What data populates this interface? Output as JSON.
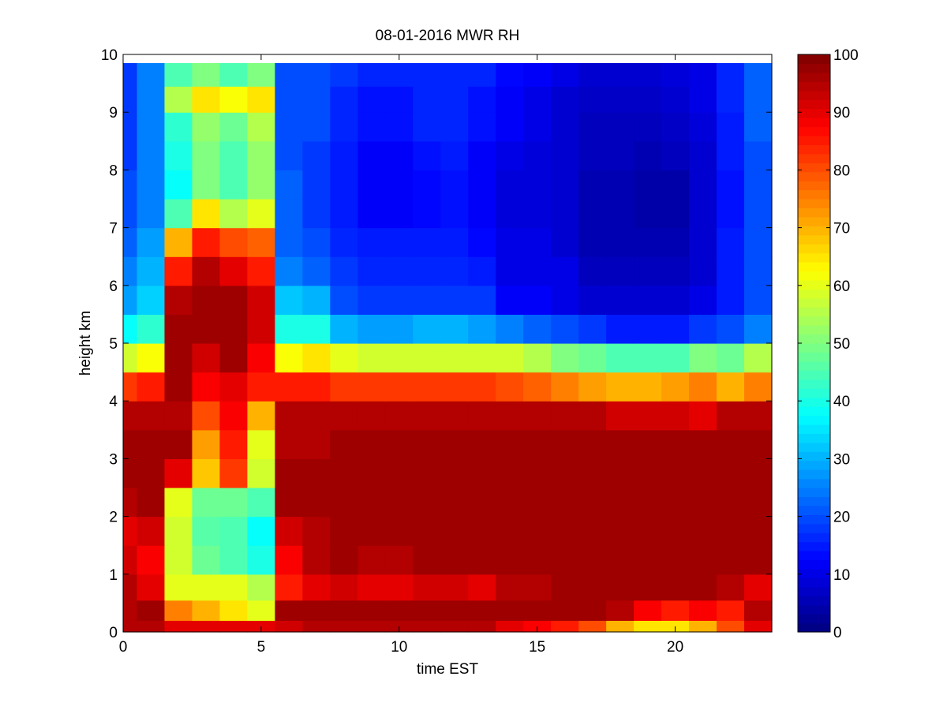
{
  "chart_data": {
    "type": "heatmap",
    "title": "08-01-2016 MWR RH",
    "xlabel": "time EST",
    "ylabel": "height km",
    "xlim": [
      0,
      23.5
    ],
    "ylim": [
      0,
      10
    ],
    "x_ticks": [
      0,
      5,
      10,
      15,
      20
    ],
    "y_ticks": [
      0,
      1,
      2,
      3,
      4,
      5,
      6,
      7,
      8,
      9,
      10
    ],
    "colorbar": {
      "colormap": "jet",
      "clim": [
        0,
        100
      ],
      "ticks": [
        0,
        10,
        20,
        30,
        40,
        50,
        60,
        70,
        80,
        90,
        100
      ]
    },
    "x": [
      0,
      1,
      2,
      3,
      4,
      5,
      6,
      7,
      8,
      9,
      10,
      11,
      12,
      13,
      14,
      15,
      16,
      17,
      18,
      19,
      20,
      21,
      22,
      23
    ],
    "y": [
      0.05,
      0.35,
      0.75,
      1.25,
      1.75,
      2.25,
      2.75,
      3.25,
      3.75,
      4.25,
      4.75,
      5.25,
      5.75,
      6.25,
      6.75,
      7.25,
      7.75,
      8.25,
      8.75,
      9.25,
      9.65
    ],
    "z": [
      [
        95,
        95,
        90,
        90,
        90,
        90,
        92,
        95,
        95,
        95,
        95,
        95,
        95,
        95,
        90,
        88,
        85,
        80,
        70,
        65,
        65,
        70,
        80,
        90
      ],
      [
        95,
        97,
        75,
        70,
        65,
        60,
        97,
        97,
        97,
        97,
        97,
        97,
        97,
        97,
        97,
        97,
        97,
        97,
        95,
        88,
        85,
        88,
        85,
        95
      ],
      [
        95,
        90,
        60,
        60,
        60,
        55,
        85,
        90,
        92,
        90,
        90,
        92,
        92,
        90,
        95,
        95,
        97,
        97,
        97,
        97,
        97,
        97,
        95,
        90
      ],
      [
        92,
        88,
        58,
        48,
        45,
        40,
        88,
        95,
        97,
        95,
        95,
        97,
        97,
        97,
        97,
        97,
        97,
        97,
        97,
        97,
        97,
        97,
        97,
        97
      ],
      [
        90,
        92,
        58,
        46,
        45,
        38,
        92,
        95,
        97,
        97,
        97,
        97,
        97,
        97,
        97,
        97,
        97,
        97,
        97,
        97,
        97,
        97,
        97,
        97
      ],
      [
        95,
        97,
        60,
        48,
        48,
        45,
        97,
        97,
        97,
        97,
        97,
        97,
        97,
        97,
        97,
        97,
        97,
        97,
        97,
        97,
        97,
        97,
        97,
        97
      ],
      [
        97,
        97,
        90,
        68,
        82,
        58,
        97,
        97,
        97,
        97,
        97,
        97,
        97,
        97,
        97,
        97,
        97,
        97,
        97,
        97,
        97,
        97,
        97,
        97
      ],
      [
        97,
        97,
        97,
        72,
        85,
        60,
        95,
        95,
        97,
        97,
        97,
        97,
        97,
        97,
        97,
        97,
        97,
        97,
        97,
        97,
        97,
        97,
        97,
        97
      ],
      [
        95,
        95,
        95,
        80,
        88,
        70,
        95,
        95,
        95,
        95,
        95,
        95,
        95,
        95,
        95,
        95,
        95,
        95,
        92,
        92,
        92,
        90,
        95,
        95
      ],
      [
        82,
        85,
        97,
        88,
        90,
        85,
        85,
        85,
        82,
        82,
        82,
        82,
        82,
        82,
        80,
        78,
        75,
        72,
        70,
        70,
        72,
        75,
        70,
        75
      ],
      [
        58,
        62,
        97,
        92,
        97,
        88,
        62,
        65,
        60,
        58,
        58,
        58,
        58,
        58,
        58,
        55,
        50,
        48,
        45,
        45,
        45,
        50,
        48,
        55
      ],
      [
        38,
        42,
        97,
        97,
        97,
        92,
        40,
        40,
        30,
        28,
        28,
        30,
        30,
        28,
        25,
        22,
        20,
        18,
        15,
        15,
        15,
        18,
        20,
        25
      ],
      [
        28,
        33,
        95,
        97,
        97,
        92,
        32,
        30,
        20,
        18,
        18,
        18,
        18,
        18,
        12,
        12,
        10,
        8,
        8,
        8,
        8,
        10,
        15,
        20
      ],
      [
        25,
        30,
        85,
        95,
        90,
        85,
        25,
        22,
        18,
        16,
        16,
        16,
        16,
        15,
        10,
        10,
        10,
        6,
        6,
        6,
        6,
        8,
        15,
        20
      ],
      [
        22,
        28,
        70,
        85,
        80,
        78,
        22,
        20,
        16,
        15,
        15,
        15,
        15,
        13,
        10,
        10,
        8,
        5,
        5,
        5,
        5,
        8,
        15,
        20
      ],
      [
        20,
        25,
        45,
        65,
        55,
        60,
        22,
        18,
        15,
        12,
        12,
        13,
        14,
        12,
        9,
        9,
        8,
        5,
        5,
        4,
        4,
        8,
        14,
        20
      ],
      [
        20,
        25,
        38,
        50,
        45,
        52,
        22,
        18,
        15,
        12,
        12,
        13,
        14,
        12,
        9,
        9,
        8,
        5,
        5,
        4,
        4,
        8,
        14,
        20
      ],
      [
        18,
        25,
        40,
        50,
        45,
        52,
        20,
        18,
        15,
        12,
        12,
        14,
        15,
        12,
        10,
        9,
        8,
        6,
        6,
        5,
        6,
        8,
        15,
        20
      ],
      [
        18,
        25,
        42,
        52,
        48,
        55,
        20,
        20,
        16,
        14,
        14,
        16,
        16,
        14,
        12,
        10,
        8,
        6,
        6,
        6,
        7,
        9,
        15,
        22
      ],
      [
        18,
        25,
        55,
        65,
        62,
        65,
        20,
        20,
        16,
        14,
        14,
        16,
        16,
        14,
        12,
        10,
        8,
        7,
        7,
        7,
        8,
        10,
        16,
        22
      ],
      [
        18,
        25,
        45,
        50,
        45,
        50,
        20,
        20,
        18,
        16,
        16,
        16,
        16,
        16,
        13,
        12,
        10,
        8,
        8,
        8,
        9,
        10,
        16,
        22
      ]
    ]
  }
}
